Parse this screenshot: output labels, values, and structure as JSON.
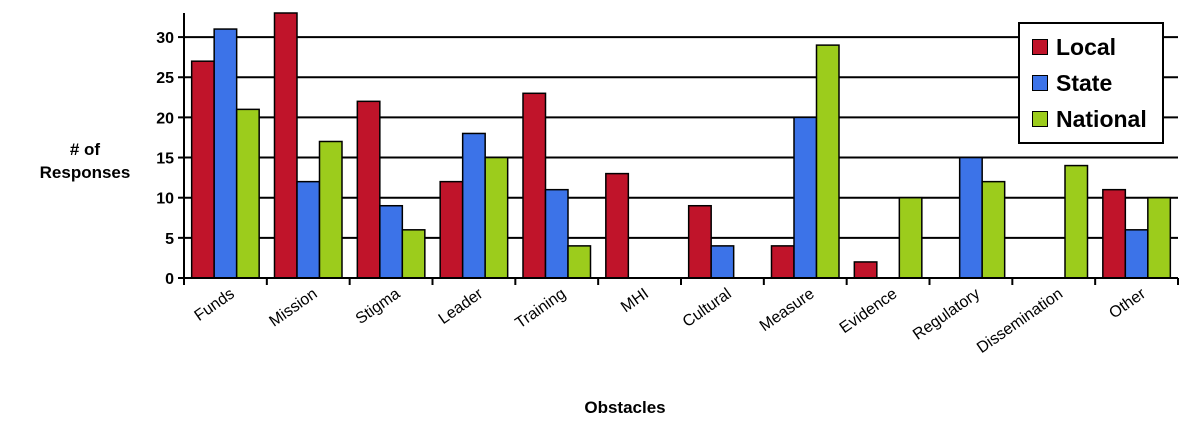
{
  "chart_data": {
    "type": "bar",
    "xlabel": "Obstacles",
    "ylabel_line1": "# of",
    "ylabel_line2": "Responses",
    "categories": [
      "Funds",
      "Mission",
      "Stigma",
      "Leader",
      "Training",
      "MHI",
      "Cultural",
      "Measure",
      "Evidence",
      "Regulatory",
      "Dissemination",
      "Other"
    ],
    "series": [
      {
        "name": "Local",
        "color": "#c0142a",
        "values": [
          27,
          33,
          22,
          12,
          23,
          13,
          9,
          4,
          2,
          0,
          0,
          11
        ]
      },
      {
        "name": "State",
        "color": "#3c73e8",
        "values": [
          31,
          12,
          9,
          18,
          11,
          0,
          4,
          20,
          0,
          15,
          0,
          6
        ]
      },
      {
        "name": "National",
        "color": "#9ccc1c",
        "values": [
          21,
          17,
          6,
          15,
          4,
          0,
          0,
          29,
          10,
          12,
          14,
          10
        ]
      }
    ],
    "yticks": [
      0,
      5,
      10,
      15,
      20,
      25,
      30
    ],
    "ylim": [
      0,
      33
    ],
    "grid": true,
    "legend_position": "top-right"
  }
}
